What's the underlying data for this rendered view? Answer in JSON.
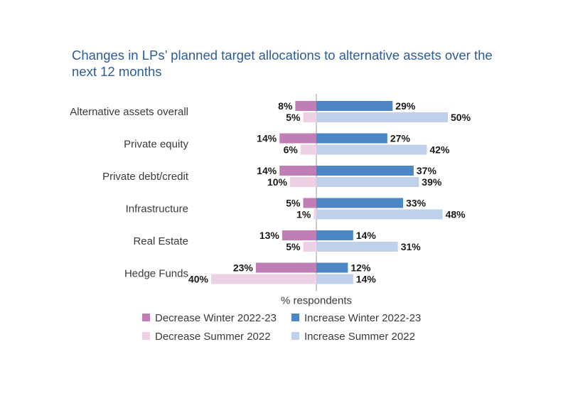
{
  "chart_data": {
    "type": "bar",
    "orientation": "horizontal-diverging",
    "title": "Changes in LPs’ planned target allocations to alternative assets over the next 12 months",
    "xlabel": "% respondents",
    "categories": [
      "Alternative assets overall",
      "Private equity",
      "Private debt/credit",
      "Infrastructure",
      "Real Estate",
      "Hedge Funds"
    ],
    "series": [
      {
        "name": "Decrease Winter 2022-23",
        "direction": "decrease",
        "color": "#bf7fb6",
        "values": [
          8,
          14,
          14,
          5,
          13,
          23
        ]
      },
      {
        "name": "Decrease Summer 2022",
        "direction": "decrease",
        "color": "#efd1e6",
        "values": [
          5,
          6,
          10,
          1,
          5,
          40
        ]
      },
      {
        "name": "Increase Winter 2022-23",
        "direction": "increase",
        "color": "#4c86c4",
        "values": [
          29,
          27,
          37,
          33,
          14,
          12
        ]
      },
      {
        "name": "Increase Summer 2022",
        "direction": "increase",
        "color": "#bfd0ea",
        "values": [
          50,
          42,
          39,
          48,
          31,
          14
        ]
      }
    ],
    "value_suffix": "%",
    "legend_position": "bottom"
  }
}
